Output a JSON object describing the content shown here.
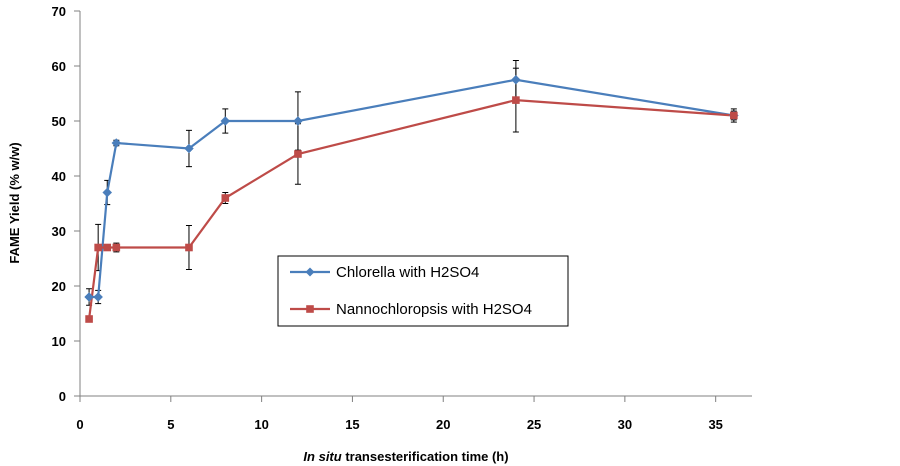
{
  "chart_data": {
    "type": "line",
    "title": "",
    "xlabel_italic": "In situ",
    "xlabel_rest": " transesterification time (h)",
    "ylabel": "FAME Yield (% w/w)",
    "xlim": [
      0,
      37
    ],
    "ylim": [
      0,
      70
    ],
    "xticks": [
      0,
      5,
      10,
      15,
      20,
      25,
      30,
      35
    ],
    "yticks": [
      0,
      10,
      20,
      30,
      40,
      50,
      60,
      70
    ],
    "grid": false,
    "legend_position": "center-right",
    "series": [
      {
        "name": "Chlorella with H2SO4",
        "color": "#4a7ebb",
        "marker": "diamond",
        "x": [
          0.5,
          1,
          1.5,
          2,
          6,
          8,
          12,
          24,
          36
        ],
        "y": [
          18,
          18,
          37,
          46,
          45,
          50,
          50,
          57.5,
          51
        ],
        "err": [
          1.5,
          1.2,
          2.2,
          0.5,
          3.3,
          2.2,
          5.3,
          3.5,
          1.2
        ]
      },
      {
        "name": "Nannochloropsis with H2SO4",
        "color": "#be4b48",
        "marker": "square",
        "x": [
          0.5,
          1,
          1.5,
          2,
          6,
          8,
          12,
          24,
          36
        ],
        "y": [
          14,
          27,
          27,
          27,
          27,
          36,
          44,
          53.8,
          51
        ],
        "err": [
          0,
          4.2,
          0.3,
          0.8,
          4,
          1,
          5.5,
          5.8,
          0.8
        ]
      }
    ]
  }
}
